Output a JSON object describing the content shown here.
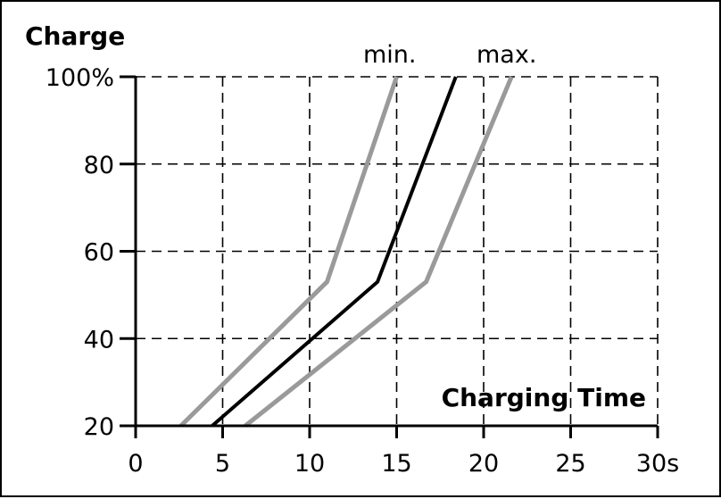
{
  "chart_data": {
    "type": "line",
    "title": "",
    "ylabel": "Charge",
    "xlabel": "Charging Time",
    "xlim": [
      0,
      30
    ],
    "ylim": [
      20,
      100
    ],
    "x_ticks": [
      0,
      5,
      10,
      15,
      20,
      25,
      30
    ],
    "x_tick_labels": [
      "0",
      "5",
      "10",
      "15",
      "20",
      "25",
      "30s"
    ],
    "y_ticks": [
      20,
      40,
      60,
      80,
      100
    ],
    "y_tick_labels": [
      "20",
      "40",
      "60",
      "80",
      "100%"
    ],
    "grid": true,
    "grid_style": "dashed",
    "series": [
      {
        "name": "min.",
        "color": "#9a9a9a",
        "points": [
          [
            2.6,
            20
          ],
          [
            11.0,
            53
          ],
          [
            15.0,
            100
          ]
        ]
      },
      {
        "name": "",
        "color": "#000000",
        "points": [
          [
            4.4,
            20
          ],
          [
            13.9,
            53
          ],
          [
            18.4,
            100
          ]
        ]
      },
      {
        "name": "max.",
        "color": "#9a9a9a",
        "points": [
          [
            6.3,
            20
          ],
          [
            16.7,
            53
          ],
          [
            21.6,
            100
          ]
        ]
      }
    ]
  }
}
